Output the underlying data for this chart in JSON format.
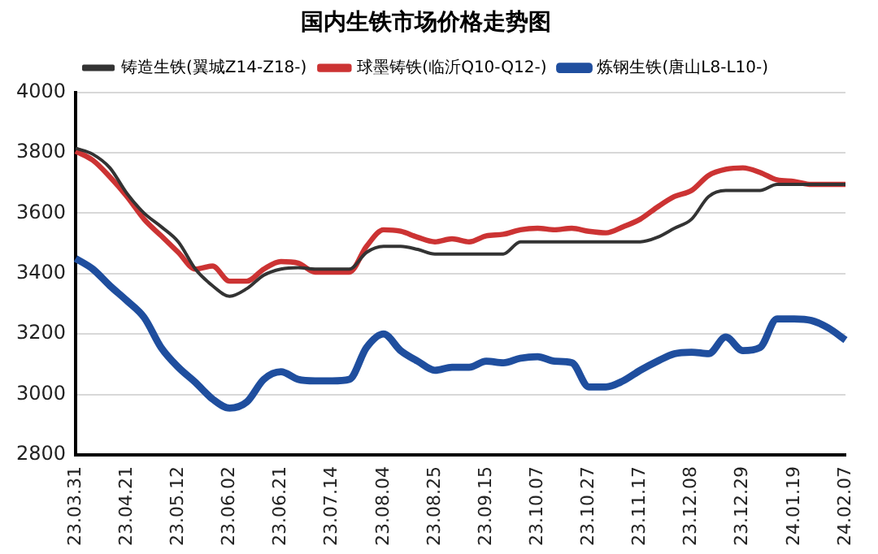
{
  "chart_data": {
    "type": "line",
    "title": "国内生铁市场价格走势图",
    "categories": [
      "23.03.31",
      null,
      null,
      "23.04.21",
      null,
      null,
      "23.05.12",
      null,
      null,
      "23.06.02",
      null,
      null,
      "23.06.21",
      null,
      null,
      "23.07.14",
      null,
      null,
      "23.08.04",
      null,
      null,
      "23.08.25",
      null,
      null,
      "23.09.15",
      null,
      null,
      "23.10.07",
      null,
      null,
      "23.10.27",
      null,
      null,
      "23.11.17",
      null,
      null,
      "23.12.08",
      null,
      null,
      "23.12.29",
      null,
      null,
      "24.01.19",
      null,
      null,
      "24.02.07"
    ],
    "series": [
      {
        "name": "铸造生铁(翼城Z14-Z18-)",
        "color": "#333333",
        "values": [
          3815,
          3795,
          3750,
          3665,
          3600,
          3555,
          3505,
          3415,
          3360,
          3325,
          3350,
          3395,
          3415,
          3420,
          3415,
          3415,
          3415,
          3470,
          3490,
          3490,
          3480,
          3465,
          3465,
          3465,
          3465,
          3465,
          3505,
          3505,
          3505,
          3505,
          3505,
          3505,
          3505,
          3505,
          3520,
          3550,
          3580,
          3655,
          3675,
          3675,
          3675,
          3695,
          3695,
          3695,
          3695,
          3695
        ]
      },
      {
        "name": "球墨铸铁(临沂Q10-Q12-)",
        "color": "#cc3333",
        "values": [
          3805,
          3775,
          3720,
          3655,
          3580,
          3525,
          3470,
          3415,
          3425,
          3375,
          3375,
          3415,
          3440,
          3435,
          3405,
          3405,
          3405,
          3490,
          3545,
          3540,
          3520,
          3505,
          3515,
          3505,
          3525,
          3530,
          3545,
          3550,
          3545,
          3550,
          3540,
          3535,
          3555,
          3580,
          3620,
          3655,
          3675,
          3725,
          3745,
          3750,
          3735,
          3710,
          3705,
          3695,
          3695,
          3695
        ]
      },
      {
        "name": "炼钢生铁(唐山L8-L10-)",
        "color": "#1f4e9e",
        "values": [
          3450,
          3415,
          3360,
          3310,
          3255,
          3155,
          3090,
          3040,
          2985,
          2955,
          2975,
          3050,
          3075,
          3050,
          3045,
          3045,
          3050,
          3155,
          3200,
          3145,
          3110,
          3080,
          3090,
          3090,
          3110,
          3105,
          3120,
          3125,
          3110,
          3105,
          3025,
          3025,
          3045,
          3080,
          3110,
          3135,
          3140,
          3135,
          3190,
          3145,
          3155,
          3250,
          3250,
          3245,
          3220,
          3180
        ]
      }
    ],
    "ylim": [
      2800,
      4000
    ],
    "yticks": [
      2800,
      3000,
      3200,
      3400,
      3600,
      3800,
      4000
    ],
    "grid": "y",
    "legend": "top",
    "marker": "none",
    "line_style": "solid"
  }
}
